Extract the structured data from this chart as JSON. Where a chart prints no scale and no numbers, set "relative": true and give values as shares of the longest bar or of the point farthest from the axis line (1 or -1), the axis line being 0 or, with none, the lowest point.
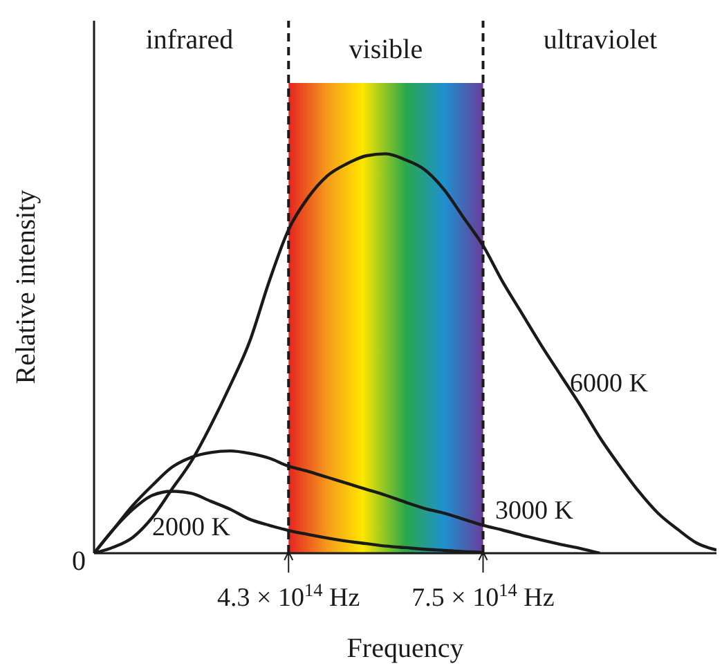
{
  "chart_data": {
    "type": "line",
    "relative": true,
    "xlabel": "Frequency",
    "ylabel": "Relative intensity",
    "categories": [
      null,
      null,
      null,
      null,
      null,
      null,
      null,
      null,
      null,
      null,
      "4.3 × 10$^{14}$ Hz",
      null,
      null,
      null,
      null,
      null,
      null,
      null,
      null,
      null,
      "7.5 × 10$^{14}$ Hz",
      null,
      null,
      null,
      null,
      null,
      null,
      null,
      null,
      null,
      null,
      null,
      null
    ],
    "series": [
      {
        "name": "6000 K",
        "color": "#1a1a1a",
        "values": [
          0,
          0.015,
          0.04,
          0.09,
          0.16,
          0.23,
          0.32,
          0.42,
          0.53,
          0.68,
          0.81,
          0.89,
          0.945,
          0.975,
          0.995,
          1,
          0.985,
          0.96,
          0.91,
          0.84,
          0.77,
          0.68,
          0.6,
          0.52,
          0.445,
          0.37,
          0.29,
          0.22,
          0.155,
          0.1,
          0.06,
          0.025,
          0.008
        ]
      },
      {
        "name": "3000 K",
        "color": "#1a1a1a",
        "values": [
          0,
          0.06,
          0.12,
          0.17,
          0.215,
          0.24,
          0.252,
          0.256,
          0.25,
          0.238,
          0.218,
          0.205,
          0.19,
          0.175,
          0.16,
          0.145,
          0.128,
          0.112,
          0.1,
          0.085,
          0.07,
          0.058,
          0.045,
          0.033,
          0.022,
          0.012,
          0,
          null,
          null,
          null,
          null,
          null,
          null
        ]
      },
      {
        "name": "2000 K",
        "color": "#1a1a1a",
        "values": [
          0,
          0.06,
          0.11,
          0.145,
          0.155,
          0.15,
          0.13,
          0.11,
          0.085,
          0.07,
          0.057,
          0.047,
          0.038,
          0.03,
          0.024,
          0.018,
          0.014,
          0.01,
          0.007,
          0.004,
          0.002,
          null,
          null,
          null,
          null,
          null,
          null,
          null,
          null,
          null,
          null,
          null,
          null
        ]
      }
    ],
    "line_style": "solid",
    "ref_lines": [
      {
        "axis": "x",
        "value": "4.3 × 10$^{14}$ Hz",
        "line_style": "dashed",
        "color": "#1a1a1a"
      },
      {
        "axis": "x",
        "value": "7.5 × 10$^{14}$ Hz",
        "line_style": "dashed",
        "color": "#1a1a1a"
      }
    ],
    "bands": [
      {
        "axis": "x",
        "from": "4.3 × 10$^{14}$ Hz",
        "to": "7.5 × 10$^{14}$ Hz",
        "label": "visible"
      }
    ],
    "annotations": [
      "infrared",
      "ultraviolet",
      "0"
    ]
  }
}
